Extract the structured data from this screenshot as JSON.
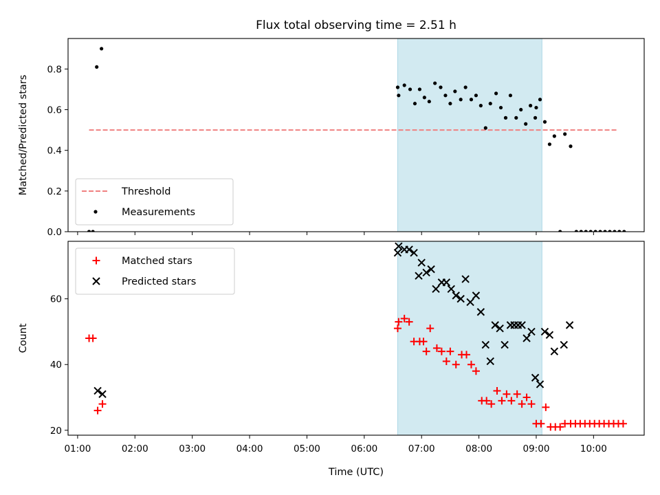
{
  "chart_data": [
    {
      "type": "scatter",
      "title": "Flux total observing time = 2.51 h",
      "xlabel": "",
      "ylabel": "Matched/Predicted stars",
      "x_tick_labels": [
        "",
        "",
        "",
        "",
        "",
        "",
        "",
        "",
        "",
        ""
      ],
      "y_ticks": [
        0.0,
        0.2,
        0.4,
        0.6,
        0.8
      ],
      "y_tick_labels": [
        "0.0",
        "0.2",
        "0.4",
        "0.6",
        "0.8"
      ],
      "ylim": [
        0.0,
        0.95
      ],
      "highlight_span": [
        "06:35",
        "09:06"
      ],
      "highlight_color": "#add8e6",
      "threshold": {
        "value": 0.5,
        "from": "01:12",
        "to": "10:25",
        "color": "#f08080",
        "style": "dashed"
      },
      "legend": {
        "location": "lower-left",
        "entries": [
          "Threshold",
          "Measurements"
        ]
      },
      "series": [
        {
          "name": "Measurements",
          "marker": "dot",
          "color": "#000000",
          "points": [
            {
              "x": "01:12",
              "y": 0.0
            },
            {
              "x": "01:16",
              "y": 0.0
            },
            {
              "x": "01:20",
              "y": 0.81
            },
            {
              "x": "01:25",
              "y": 0.9
            },
            {
              "x": "06:35",
              "y": 0.71
            },
            {
              "x": "06:36",
              "y": 0.67
            },
            {
              "x": "06:42",
              "y": 0.72
            },
            {
              "x": "06:48",
              "y": 0.7
            },
            {
              "x": "06:53",
              "y": 0.63
            },
            {
              "x": "06:58",
              "y": 0.7
            },
            {
              "x": "07:03",
              "y": 0.66
            },
            {
              "x": "07:08",
              "y": 0.64
            },
            {
              "x": "07:14",
              "y": 0.73
            },
            {
              "x": "07:20",
              "y": 0.71
            },
            {
              "x": "07:25",
              "y": 0.67
            },
            {
              "x": "07:30",
              "y": 0.63
            },
            {
              "x": "07:35",
              "y": 0.69
            },
            {
              "x": "07:41",
              "y": 0.65
            },
            {
              "x": "07:46",
              "y": 0.71
            },
            {
              "x": "07:52",
              "y": 0.65
            },
            {
              "x": "07:57",
              "y": 0.67
            },
            {
              "x": "08:02",
              "y": 0.62
            },
            {
              "x": "08:07",
              "y": 0.51
            },
            {
              "x": "08:12",
              "y": 0.63
            },
            {
              "x": "08:18",
              "y": 0.68
            },
            {
              "x": "08:23",
              "y": 0.61
            },
            {
              "x": "08:28",
              "y": 0.56
            },
            {
              "x": "08:33",
              "y": 0.67
            },
            {
              "x": "08:39",
              "y": 0.56
            },
            {
              "x": "08:44",
              "y": 0.6
            },
            {
              "x": "08:49",
              "y": 0.53
            },
            {
              "x": "08:54",
              "y": 0.62
            },
            {
              "x": "08:59",
              "y": 0.56
            },
            {
              "x": "09:00",
              "y": 0.61
            },
            {
              "x": "09:04",
              "y": 0.65
            },
            {
              "x": "09:09",
              "y": 0.54
            },
            {
              "x": "09:14",
              "y": 0.43
            },
            {
              "x": "09:19",
              "y": 0.47
            },
            {
              "x": "09:25",
              "y": 0.0
            },
            {
              "x": "09:30",
              "y": 0.48
            },
            {
              "x": "09:36",
              "y": 0.42
            },
            {
              "x": "09:42",
              "y": 0.0
            },
            {
              "x": "09:47",
              "y": 0.0
            },
            {
              "x": "09:52",
              "y": 0.0
            },
            {
              "x": "09:57",
              "y": 0.0
            },
            {
              "x": "10:02",
              "y": 0.0
            },
            {
              "x": "10:07",
              "y": 0.0
            },
            {
              "x": "10:12",
              "y": 0.0
            },
            {
              "x": "10:17",
              "y": 0.0
            },
            {
              "x": "10:22",
              "y": 0.0
            },
            {
              "x": "10:27",
              "y": 0.0
            },
            {
              "x": "10:32",
              "y": 0.0
            }
          ]
        }
      ]
    },
    {
      "type": "scatter",
      "title": "",
      "xlabel": "Time (UTC)",
      "ylabel": "Count",
      "x_ticks": [
        "01:00",
        "02:00",
        "03:00",
        "04:00",
        "05:00",
        "06:00",
        "07:00",
        "08:00",
        "09:00",
        "10:00"
      ],
      "x_tick_labels": [
        "01:00",
        "02:00",
        "03:00",
        "04:00",
        "05:00",
        "06:00",
        "07:00",
        "08:00",
        "09:00",
        "10:00"
      ],
      "xlim": [
        "00:50",
        "10:53"
      ],
      "y_ticks": [
        20,
        40,
        60
      ],
      "y_tick_labels": [
        "20",
        "40",
        "60"
      ],
      "ylim": [
        18.5,
        77.5
      ],
      "highlight_span": [
        "06:35",
        "09:06"
      ],
      "highlight_color": "#add8e6",
      "legend": {
        "location": "upper-left",
        "entries": [
          "Matched stars",
          "Predicted stars"
        ]
      },
      "series": [
        {
          "name": "Matched stars",
          "marker": "plus",
          "color": "#ff0000",
          "points": [
            {
              "x": "01:12",
              "y": 48
            },
            {
              "x": "01:16",
              "y": 48
            },
            {
              "x": "01:21",
              "y": 26
            },
            {
              "x": "01:26",
              "y": 28
            },
            {
              "x": "06:35",
              "y": 51
            },
            {
              "x": "06:36",
              "y": 53
            },
            {
              "x": "06:42",
              "y": 54
            },
            {
              "x": "06:47",
              "y": 53
            },
            {
              "x": "06:52",
              "y": 47
            },
            {
              "x": "06:58",
              "y": 47
            },
            {
              "x": "07:02",
              "y": 47
            },
            {
              "x": "07:05",
              "y": 44
            },
            {
              "x": "07:09",
              "y": 51
            },
            {
              "x": "07:16",
              "y": 45
            },
            {
              "x": "07:21",
              "y": 44
            },
            {
              "x": "07:26",
              "y": 41
            },
            {
              "x": "07:30",
              "y": 44
            },
            {
              "x": "07:36",
              "y": 40
            },
            {
              "x": "07:42",
              "y": 43
            },
            {
              "x": "07:47",
              "y": 43
            },
            {
              "x": "07:52",
              "y": 40
            },
            {
              "x": "07:57",
              "y": 38
            },
            {
              "x": "08:03",
              "y": 29
            },
            {
              "x": "08:08",
              "y": 29
            },
            {
              "x": "08:13",
              "y": 28
            },
            {
              "x": "08:19",
              "y": 32
            },
            {
              "x": "08:24",
              "y": 29
            },
            {
              "x": "08:29",
              "y": 31
            },
            {
              "x": "08:34",
              "y": 29
            },
            {
              "x": "08:40",
              "y": 31
            },
            {
              "x": "08:45",
              "y": 28
            },
            {
              "x": "08:50",
              "y": 30
            },
            {
              "x": "08:55",
              "y": 28
            },
            {
              "x": "09:00",
              "y": 22
            },
            {
              "x": "09:05",
              "y": 22
            },
            {
              "x": "09:10",
              "y": 27
            },
            {
              "x": "09:15",
              "y": 21
            },
            {
              "x": "09:20",
              "y": 21
            },
            {
              "x": "09:25",
              "y": 21
            },
            {
              "x": "09:30",
              "y": 22
            },
            {
              "x": "09:36",
              "y": 22
            },
            {
              "x": "09:41",
              "y": 22
            },
            {
              "x": "09:46",
              "y": 22
            },
            {
              "x": "09:51",
              "y": 22
            },
            {
              "x": "09:56",
              "y": 22
            },
            {
              "x": "10:01",
              "y": 22
            },
            {
              "x": "10:06",
              "y": 22
            },
            {
              "x": "10:11",
              "y": 22
            },
            {
              "x": "10:16",
              "y": 22
            },
            {
              "x": "10:21",
              "y": 22
            },
            {
              "x": "10:26",
              "y": 22
            },
            {
              "x": "10:31",
              "y": 22
            }
          ]
        },
        {
          "name": "Predicted stars",
          "marker": "x",
          "color": "#000000",
          "points": [
            {
              "x": "01:21",
              "y": 32
            },
            {
              "x": "01:26",
              "y": 31
            },
            {
              "x": "06:35",
              "y": 74
            },
            {
              "x": "06:36",
              "y": 76
            },
            {
              "x": "06:42",
              "y": 75
            },
            {
              "x": "06:47",
              "y": 75
            },
            {
              "x": "06:52",
              "y": 74
            },
            {
              "x": "06:57",
              "y": 67
            },
            {
              "x": "07:00",
              "y": 71
            },
            {
              "x": "07:05",
              "y": 68
            },
            {
              "x": "07:10",
              "y": 69
            },
            {
              "x": "07:15",
              "y": 63
            },
            {
              "x": "07:21",
              "y": 65
            },
            {
              "x": "07:26",
              "y": 65
            },
            {
              "x": "07:31",
              "y": 63
            },
            {
              "x": "07:36",
              "y": 61
            },
            {
              "x": "07:41",
              "y": 60
            },
            {
              "x": "07:46",
              "y": 66
            },
            {
              "x": "07:51",
              "y": 59
            },
            {
              "x": "07:57",
              "y": 61
            },
            {
              "x": "08:02",
              "y": 56
            },
            {
              "x": "08:07",
              "y": 46
            },
            {
              "x": "08:12",
              "y": 41
            },
            {
              "x": "08:17",
              "y": 52
            },
            {
              "x": "08:22",
              "y": 51
            },
            {
              "x": "08:27",
              "y": 46
            },
            {
              "x": "08:33",
              "y": 52
            },
            {
              "x": "08:37",
              "y": 52
            },
            {
              "x": "08:41",
              "y": 52
            },
            {
              "x": "08:45",
              "y": 52
            },
            {
              "x": "08:50",
              "y": 48
            },
            {
              "x": "08:55",
              "y": 50
            },
            {
              "x": "08:59",
              "y": 36
            },
            {
              "x": "09:04",
              "y": 34
            },
            {
              "x": "09:09",
              "y": 50
            },
            {
              "x": "09:14",
              "y": 49
            },
            {
              "x": "09:19",
              "y": 44
            },
            {
              "x": "09:29",
              "y": 46
            },
            {
              "x": "09:35",
              "y": 52
            }
          ]
        }
      ]
    }
  ]
}
